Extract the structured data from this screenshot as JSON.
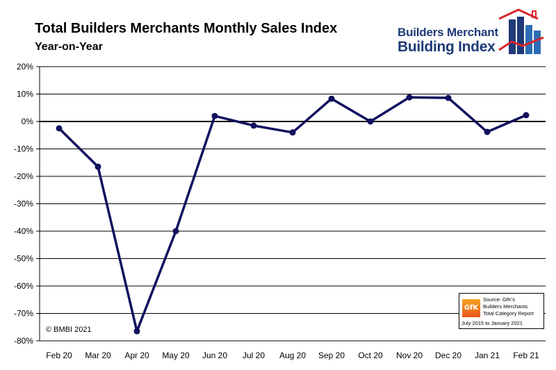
{
  "header": {
    "title": "Total Builders Merchants Monthly Sales Index",
    "subtitle": "Year-on-Year"
  },
  "logo": {
    "line1": "Builders Merchant",
    "line2": "Building Index",
    "colors": {
      "navy": "#1f3a78",
      "red": "#d9262b",
      "blue": "#2e6db4"
    }
  },
  "copyright": "© BMBI 2021",
  "source": {
    "badge": "GfK",
    "lines": [
      "Source: GfK's",
      "Builders Merchants",
      "Total Category Report",
      "July 2015 to January 2021"
    ]
  },
  "chart_data": {
    "type": "line",
    "title": "Total Builders Merchants Monthly Sales Index",
    "subtitle": "Year-on-Year",
    "xlabel": "",
    "ylabel": "",
    "categories": [
      "Feb 20",
      "Mar 20",
      "Apr 20",
      "May 20",
      "Jun 20",
      "Jul 20",
      "Aug 20",
      "Sep 20",
      "Oct 20",
      "Nov 20",
      "Dec 20",
      "Jan 21",
      "Feb 21"
    ],
    "series": [
      {
        "name": "Year-on-Year",
        "values": [
          -2.5,
          -16.5,
          -76.5,
          -40,
          2,
          -1.5,
          -4,
          8.3,
          0,
          8.8,
          8.6,
          -3.8,
          2.3
        ]
      }
    ],
    "ylim": [
      -80,
      20
    ],
    "yticks": [
      20,
      10,
      0,
      -10,
      -20,
      -30,
      -40,
      -50,
      -60,
      -70,
      -80
    ],
    "ytick_labels": [
      "20%",
      "10%",
      "0%",
      "-10%",
      "-20%",
      "-30%",
      "-40%",
      "-50%",
      "-60%",
      "-70%",
      "-80%"
    ],
    "grid": true,
    "line_color": "#10105e"
  }
}
